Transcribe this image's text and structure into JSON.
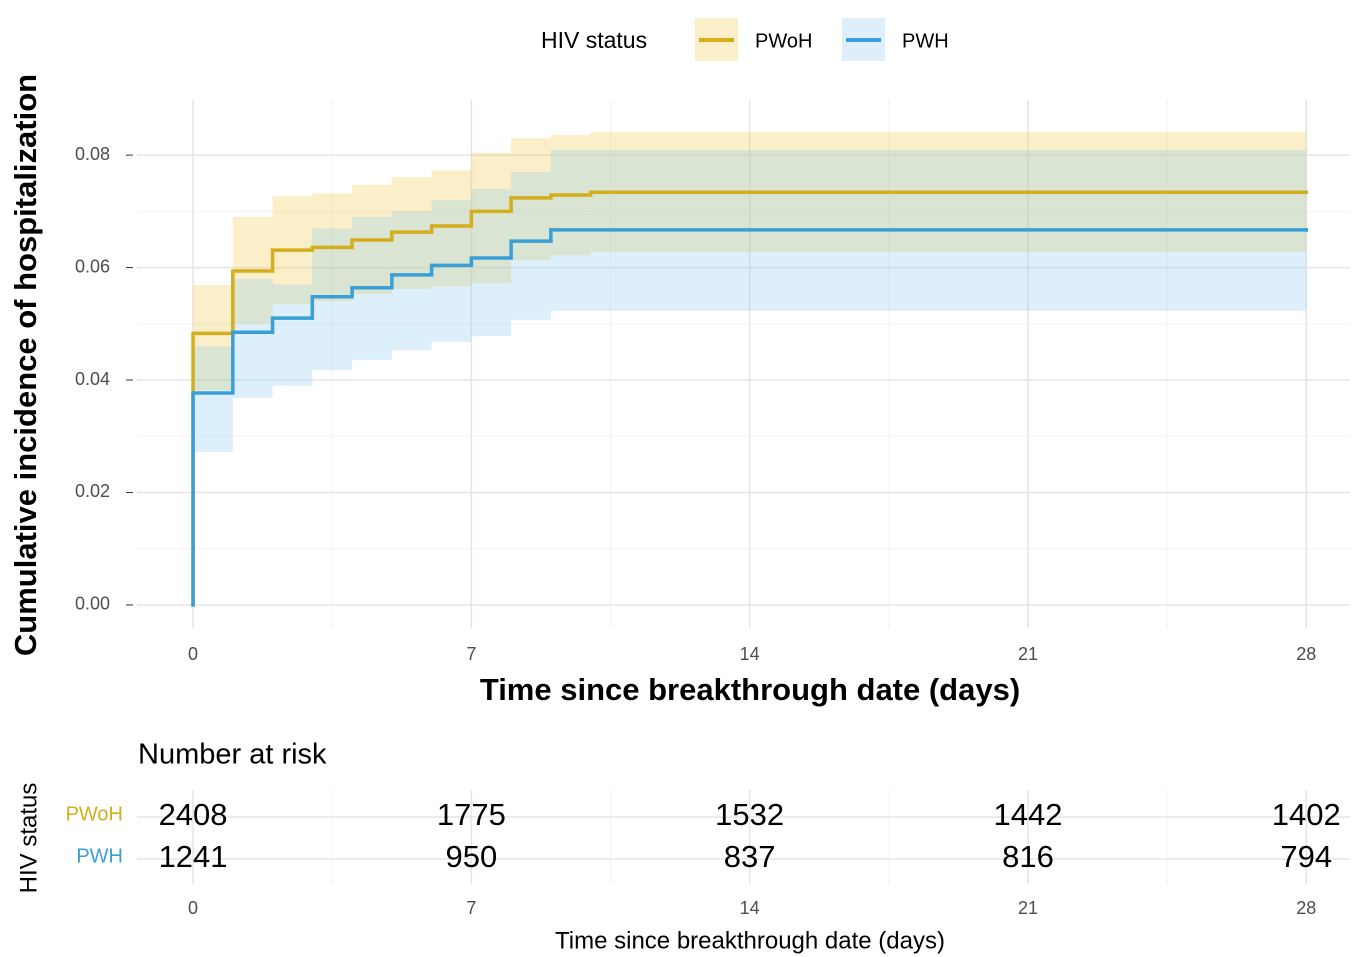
{
  "chart_data": [
    {
      "type": "step",
      "y_label": "Cumulative incidence of hospitalization",
      "x_label": "Time since breakthrough date (days)",
      "legend_title": "HIV status",
      "legend_position": "top",
      "xlim": [
        -1.41,
        29.1
      ],
      "ylim": [
        -0.0041,
        0.0898
      ],
      "xticks": [
        0,
        7,
        14,
        21,
        28
      ],
      "yticks": [
        {
          "value": 0,
          "label": "0.00"
        },
        {
          "value": 0.02,
          "label": "0.02"
        },
        {
          "value": 0.04,
          "label": "0.04"
        },
        {
          "value": 0.06,
          "label": "0.06"
        },
        {
          "value": 0.08,
          "label": "0.08"
        }
      ],
      "xminor": [
        3.5,
        10.5,
        17.5,
        24.5
      ],
      "yminor": [
        0.01,
        0.03,
        0.05,
        0.07
      ],
      "grid": true,
      "series": [
        {
          "name": "PWoH",
          "color": "#d4ae1c",
          "band_color": "#f0c94a",
          "x": [
            0,
            0,
            1,
            2,
            3,
            4,
            5,
            6,
            7,
            8,
            9,
            10,
            28
          ],
          "values": [
            0,
            0.0483,
            0.0594,
            0.0631,
            0.0636,
            0.0649,
            0.0663,
            0.0674,
            0.07,
            0.0724,
            0.0729,
            0.0734,
            0.0734
          ],
          "lower": [
            0,
            0.0382,
            0.05,
            0.0535,
            0.054,
            0.0553,
            0.0562,
            0.0566,
            0.0572,
            0.0613,
            0.0622,
            0.0628,
            0.0628
          ],
          "upper": [
            0,
            0.0569,
            0.069,
            0.0727,
            0.0732,
            0.0747,
            0.0761,
            0.0773,
            0.0804,
            0.083,
            0.0836,
            0.0841,
            0.0841
          ]
        },
        {
          "name": "PWH",
          "color": "#3a9fd6",
          "band_color": "#8ecbef",
          "x": [
            0,
            0,
            1,
            2,
            3,
            4,
            5,
            6,
            7,
            8,
            9,
            28
          ],
          "values": [
            0,
            0.0377,
            0.0485,
            0.051,
            0.0548,
            0.0564,
            0.0587,
            0.0604,
            0.0617,
            0.0647,
            0.0667,
            0.0667
          ],
          "lower": [
            0,
            0.0272,
            0.0368,
            0.039,
            0.0418,
            0.0436,
            0.0453,
            0.0468,
            0.0478,
            0.0507,
            0.0523,
            0.0523
          ],
          "upper": [
            0,
            0.046,
            0.058,
            0.057,
            0.067,
            0.069,
            0.07,
            0.072,
            0.074,
            0.077,
            0.0809,
            0.0809
          ]
        }
      ]
    },
    {
      "type": "risk_table",
      "title": "Number at risk",
      "y_label": "HIV status",
      "x_label": "Time since breakthrough date (days)",
      "xlim": [
        -1.41,
        29.1
      ],
      "xticks": [
        0,
        7,
        14,
        21,
        28
      ],
      "xminor": [
        3.5,
        10.5,
        17.5,
        24.5
      ],
      "series": [
        {
          "name": "PWoH",
          "color": "#d4ae1c",
          "values": [
            2408,
            1775,
            1532,
            1442,
            1402
          ]
        },
        {
          "name": "PWH",
          "color": "#3a9fd6",
          "values": [
            1241,
            950,
            837,
            816,
            794
          ]
        }
      ]
    }
  ]
}
